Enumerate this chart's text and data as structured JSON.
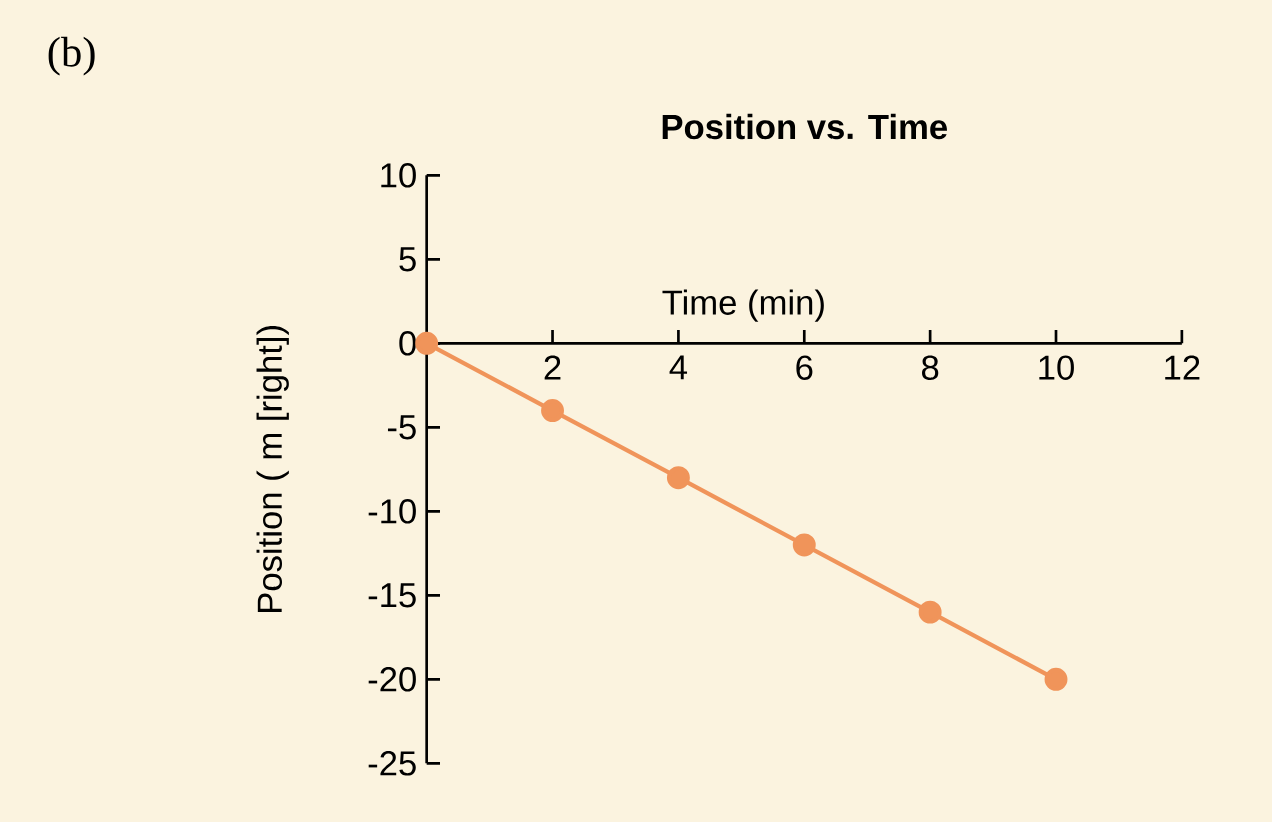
{
  "chart_data": {
    "type": "line",
    "title": "Position vs. Time",
    "xlabel": "Time (min)",
    "ylabel": "Position ( m [right])",
    "annotations": [
      "(b)"
    ],
    "x": [
      0,
      2,
      4,
      6,
      8,
      10
    ],
    "series": [
      {
        "color": "#f0945a",
        "values": [
          0,
          -4,
          -8,
          -12,
          -16,
          -20
        ]
      }
    ],
    "xlim": [
      0,
      12
    ],
    "xticks": [
      2,
      4,
      6,
      8,
      10,
      12
    ],
    "ylim": [
      -25,
      10
    ],
    "yticks": [
      10,
      5,
      0,
      -5,
      -10,
      -15,
      -20,
      -25
    ],
    "marker": "circle",
    "line_style": "solid",
    "grid": false
  }
}
